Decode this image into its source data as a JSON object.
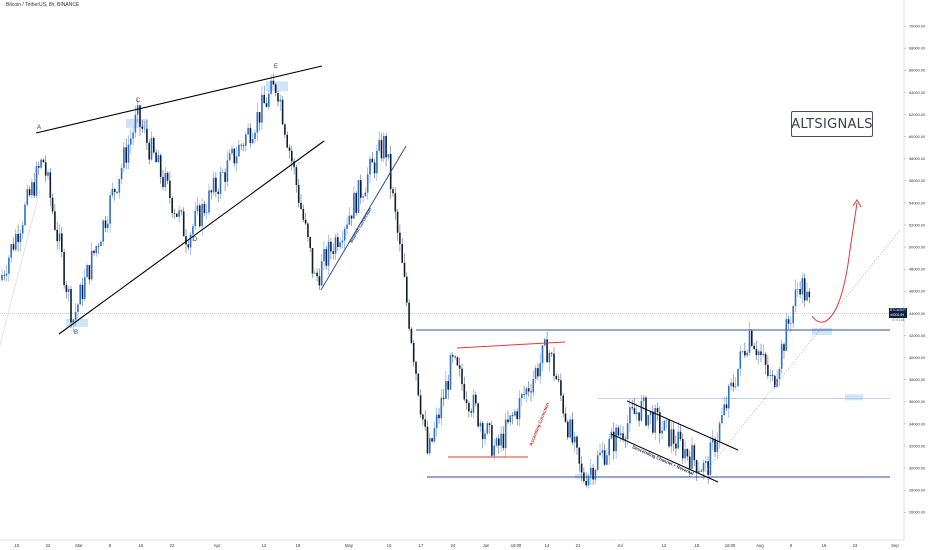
{
  "header": {
    "title": "Bitcoin / TetherUS, 8h, BINANCE"
  },
  "watermark": {
    "text": "ALTSIGNALS"
  },
  "price_tag": {
    "symbol": "BTCUSDT",
    "price": "44002.89",
    "countdown": "07:01:48"
  },
  "colors": {
    "candle_up": "#2b6fd0",
    "candle_down": "#0d1b33",
    "trendline": "#000000",
    "support_line": "#2c4f9c",
    "ascending_line": "#e53935",
    "projection_curve": "#e53935",
    "highlight": "#bcd8f5"
  },
  "annotations": [
    {
      "id": "A",
      "text": "A"
    },
    {
      "id": "B",
      "text": "B"
    },
    {
      "id": "C",
      "text": "C"
    },
    {
      "id": "D",
      "text": "D"
    },
    {
      "id": "E",
      "text": "E"
    },
    {
      "id": "bearish",
      "text": "Bearish Correction"
    },
    {
      "id": "ascending",
      "text": "Ascending Correction"
    },
    {
      "id": "descending",
      "text": "Descending Channel + Reversal"
    }
  ],
  "chart_data": {
    "type": "candlestick",
    "title": "Bitcoin / TetherUS, 8h, BINANCE",
    "y_axis": {
      "ticks": [
        26000,
        28000,
        30000,
        32000,
        34000,
        36000,
        38000,
        40000,
        42000,
        44000,
        46000,
        48000,
        50000,
        52000,
        54000,
        56000,
        58000,
        60000,
        62000,
        64000,
        66000,
        68000,
        70000
      ],
      "labels": [
        "26000.00",
        "28000.00",
        "30000.00",
        "32000.00",
        "34000.00",
        "36000.00",
        "38000.00",
        "40000.00",
        "42000.00",
        "44000.00",
        "46000.00",
        "48000.00",
        "50000.00",
        "52000.00",
        "54000.00",
        "56000.00",
        "58000.00",
        "60000.00",
        "62000.00",
        "64000.00",
        "66000.00",
        "68000.00",
        "70000.00"
      ],
      "range": [
        24000,
        72000
      ]
    },
    "x_axis": {
      "labels": [
        "15",
        "22",
        "Mar",
        "8",
        "15",
        "22",
        "Apr",
        "12",
        "19",
        "May",
        "10",
        "17",
        "24",
        "Jun",
        "16:00",
        "14",
        "21",
        "Jul",
        "12",
        "19",
        "16:00",
        "Aug",
        "9",
        "16",
        "23",
        "Sep"
      ]
    },
    "last_price": 44002.89,
    "price_path": [
      {
        "t": "early Feb",
        "price": 47000
      },
      {
        "t": "Feb 21 (high)",
        "price": 58000
      },
      {
        "t": "Feb 28 (B)",
        "price": 43500
      },
      {
        "t": "Mar 13 (C)",
        "price": 61700
      },
      {
        "t": "Mar 25 (D)",
        "price": 51000
      },
      {
        "t": "Apr 14 (E)",
        "price": 64800
      },
      {
        "t": "Apr 25",
        "price": 47000
      },
      {
        "t": "May 8",
        "price": 59500
      },
      {
        "t": "May 19",
        "price": 31000
      },
      {
        "t": "May 25",
        "price": 39500
      },
      {
        "t": "Jun 8",
        "price": 31500
      },
      {
        "t": "Jun 15",
        "price": 41000
      },
      {
        "t": "Jun 22",
        "price": 29000
      },
      {
        "t": "Jul 6",
        "price": 35500
      },
      {
        "t": "Jul 20",
        "price": 29800
      },
      {
        "t": "Aug 1",
        "price": 42500
      },
      {
        "t": "Aug 5",
        "price": 37500
      },
      {
        "t": "Aug 14",
        "price": 47000
      },
      {
        "t": "Aug 17",
        "price": 44000
      }
    ],
    "horizontal_levels": [
      {
        "name": "resistance",
        "value": 42500
      },
      {
        "name": "mid",
        "value": 36300
      },
      {
        "name": "support",
        "value": 29200
      },
      {
        "name": "current",
        "value": 44002.89
      }
    ]
  }
}
